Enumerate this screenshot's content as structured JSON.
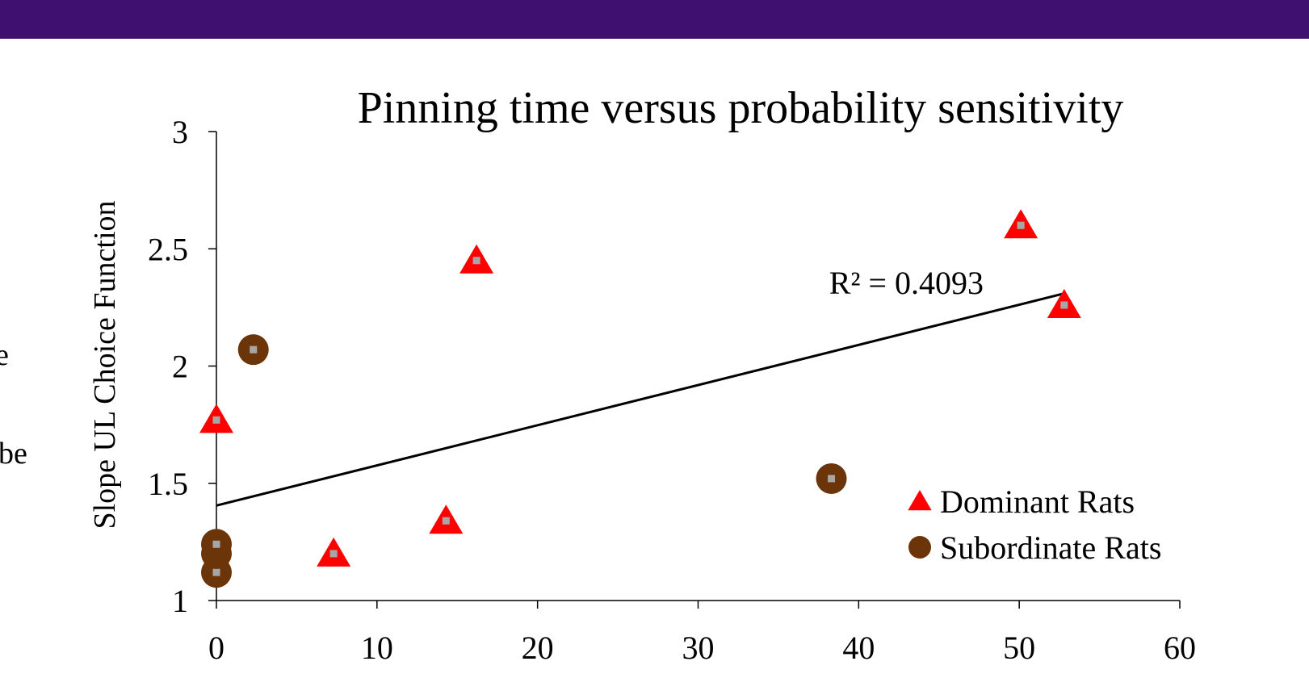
{
  "colors": {
    "banner": "#3f1070",
    "dominant": "#ff0000",
    "subordinate": "#6b3409",
    "marker_center": "#a6a6a6",
    "trendline": "#000000"
  },
  "side_text": [
    "e",
    "be"
  ],
  "chart_data": {
    "type": "scatter",
    "title": "Pinning time versus probability sensitivity",
    "xlabel": "",
    "ylabel": "Slope UL Choice Function",
    "xlim": [
      0,
      60
    ],
    "ylim": [
      1,
      3
    ],
    "x_ticks": [
      "0",
      "10",
      "20",
      "30",
      "40",
      "50",
      "60"
    ],
    "y_ticks": [
      "1",
      "1.5",
      "2",
      "2.5",
      "3"
    ],
    "grid": false,
    "legend_position": "bottom-right",
    "series": [
      {
        "name": "Dominant Rats",
        "marker": "triangle",
        "points": [
          {
            "x": 0,
            "y": 1.77
          },
          {
            "x": 7.3,
            "y": 1.2
          },
          {
            "x": 14.3,
            "y": 1.34
          },
          {
            "x": 16.2,
            "y": 2.45
          },
          {
            "x": 50.1,
            "y": 2.6
          },
          {
            "x": 52.8,
            "y": 2.26
          }
        ]
      },
      {
        "name": "Subordinate Rats",
        "marker": "circle",
        "points": [
          {
            "x": 0,
            "y": 1.12
          },
          {
            "x": 0,
            "y": 1.2
          },
          {
            "x": 0,
            "y": 1.24
          },
          {
            "x": 2.3,
            "y": 2.07
          },
          {
            "x": 38.3,
            "y": 1.52
          }
        ]
      }
    ],
    "trendline": {
      "x_range": [
        0,
        52.8
      ],
      "intercept": 1.405,
      "slope": 0.01713,
      "label": "R² = 0.4093"
    }
  }
}
